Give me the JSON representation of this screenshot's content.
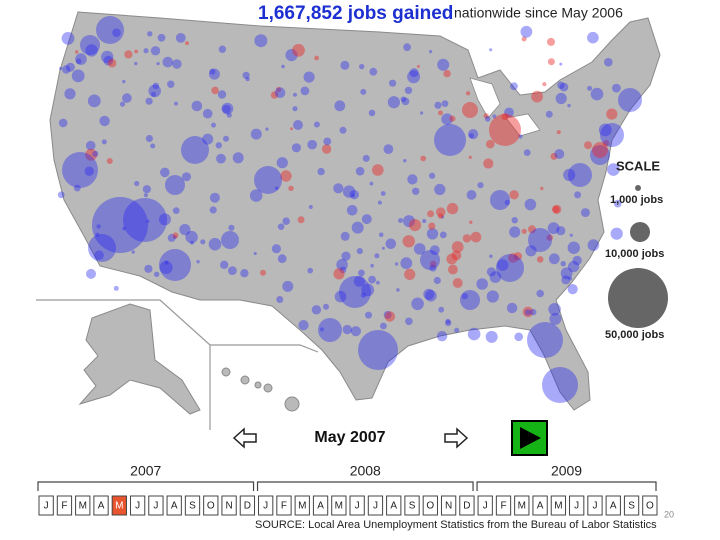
{
  "header": {
    "headline": "1,667,852 jobs gained",
    "subtitle": "nationwide since May 2006"
  },
  "scale": {
    "title": "SCALE",
    "items": [
      "1,000 jobs",
      "10,000 jobs",
      "50,000 jobs"
    ]
  },
  "timeline": {
    "current": "May 2007",
    "years": [
      {
        "label": "2007",
        "months": [
          "J",
          "F",
          "M",
          "A",
          "M",
          "J",
          "J",
          "A",
          "S",
          "O",
          "N",
          "D"
        ]
      },
      {
        "label": "2008",
        "months": [
          "J",
          "F",
          "M",
          "A",
          "M",
          "J",
          "J",
          "A",
          "S",
          "O",
          "N",
          "D"
        ]
      },
      {
        "label": "2009",
        "months": [
          "J",
          "F",
          "M",
          "A",
          "M",
          "J",
          "J",
          "A",
          "S",
          "O"
        ]
      }
    ],
    "selected": [
      0,
      4
    ]
  },
  "source": "SOURCE: Local Area Unemployment Statistics from the Bureau of Labor Statistics",
  "page_number": "20"
}
